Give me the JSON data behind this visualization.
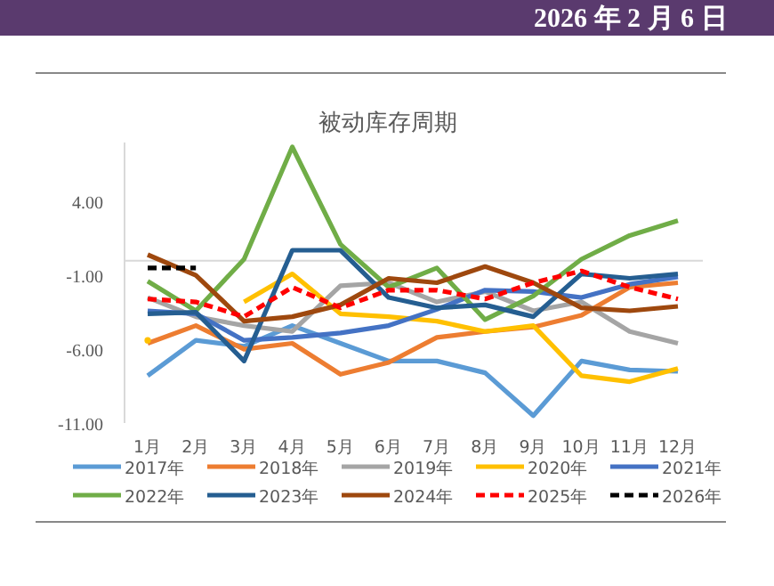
{
  "chart_data": {
    "type": "line",
    "title": "被动库存周期",
    "annotations": [
      "2026 年 2 月 6 日"
    ],
    "categories": [
      "1月",
      "2月",
      "3月",
      "4月",
      "5月",
      "6月",
      "7月",
      "8月",
      "9月",
      "10月",
      "11月",
      "12月"
    ],
    "ylim": [
      -11,
      8
    ],
    "yticks": [
      {
        "value": 4,
        "label": "4.00"
      },
      {
        "value": -1,
        "label": "-1.00"
      },
      {
        "value": -6,
        "label": "-6.00"
      },
      {
        "value": -11,
        "label": "-11.00"
      }
    ],
    "grid": false,
    "legend": "bottom",
    "marker": "none",
    "series": [
      {
        "name": "2017年",
        "color": "#5b9bd5",
        "values": [
          -7.8,
          -5.4,
          -5.8,
          -4.4,
          -5.6,
          -6.8,
          -6.8,
          -7.6,
          -10.5,
          -6.8,
          -7.4,
          -7.5
        ]
      },
      {
        "name": "2018年",
        "color": "#ed7d31",
        "values": [
          -5.6,
          -4.4,
          -6.0,
          -5.6,
          -7.7,
          -6.9,
          -5.2,
          -4.8,
          -4.5,
          -3.7,
          -1.8,
          -1.5
        ]
      },
      {
        "name": "2019年",
        "color": "#a5a5a5",
        "values": [
          -2.5,
          -3.8,
          -4.4,
          -4.8,
          -1.7,
          -1.5,
          -2.8,
          -2.1,
          -3.4,
          -2.8,
          -4.8,
          -5.6
        ]
      },
      {
        "name": "2020年",
        "color": "#ffc000",
        "values": [
          -5.4,
          null,
          -2.8,
          -0.9,
          -3.6,
          -3.8,
          -4.1,
          -4.8,
          -4.4,
          -7.8,
          -8.2,
          -7.3
        ]
      },
      {
        "name": "2021年",
        "color": "#4472c4",
        "values": [
          -3.4,
          -3.6,
          -5.4,
          -5.2,
          -4.9,
          -4.4,
          -3.3,
          -2.0,
          -2.1,
          -2.5,
          -1.6,
          -1.1
        ]
      },
      {
        "name": "2022年",
        "color": "#70ad47",
        "values": [
          -1.4,
          -3.4,
          0.1,
          7.7,
          1.1,
          -1.8,
          -0.5,
          -4.0,
          -2.4,
          0.1,
          1.7,
          2.7
        ]
      },
      {
        "name": "2023年",
        "color": "#255e91",
        "values": [
          -3.6,
          -3.5,
          -6.8,
          0.7,
          0.7,
          -2.5,
          -3.2,
          -3.0,
          -3.8,
          -0.9,
          -1.2,
          -0.9
        ]
      },
      {
        "name": "2024年",
        "color": "#9e480e",
        "values": [
          0.4,
          -1.0,
          -4.1,
          -3.8,
          -3.0,
          -1.2,
          -1.5,
          -0.4,
          -1.5,
          -3.2,
          -3.4,
          -3.1
        ]
      },
      {
        "name": "2025年",
        "color": "#ff0000",
        "line_style": "dashed",
        "values": [
          -2.6,
          -2.8,
          -3.8,
          -1.8,
          -3.2,
          -2.0,
          -2.0,
          -2.6,
          -1.5,
          -0.7,
          -1.8,
          -2.6
        ]
      },
      {
        "name": "2026年",
        "color": "#000000",
        "line_style": "dashed",
        "values": [
          -0.5,
          -0.5,
          null,
          null,
          null,
          null,
          null,
          null,
          null,
          null,
          null,
          null
        ]
      }
    ]
  }
}
